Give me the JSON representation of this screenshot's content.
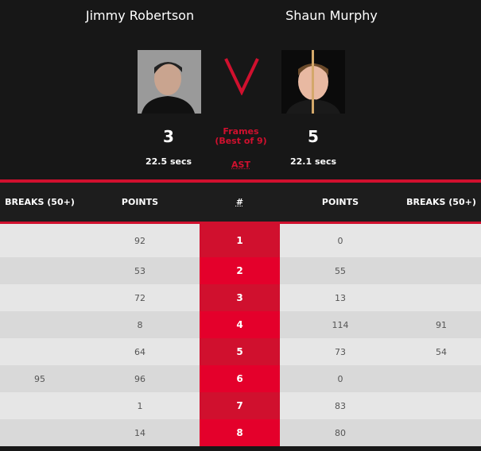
{
  "player1": {
    "name": "Jimmy Robertson",
    "score": "3",
    "avg_shot_time": "22.5 secs"
  },
  "player2": {
    "name": "Shaun Murphy",
    "score": "5",
    "avg_shot_time": "22.1 secs"
  },
  "versus": "V",
  "frames_label": "Frames",
  "best_of": "(Best of 9)",
  "ast_label": "AST",
  "headers": {
    "breaks_left": "BREAKS (50+)",
    "points_left": "POINTS",
    "frame": "#",
    "points_right": "POINTS",
    "breaks_right": "BREAKS (50+)"
  },
  "colors": {
    "accent": "#d0102e",
    "accent_alt": "#e4002b"
  },
  "frames": [
    {
      "n": "1",
      "b1": "",
      "p1": "92",
      "p2": "0",
      "b2": ""
    },
    {
      "n": "2",
      "b1": "",
      "p1": "53",
      "p2": "55",
      "b2": ""
    },
    {
      "n": "3",
      "b1": "",
      "p1": "72",
      "p2": "13",
      "b2": ""
    },
    {
      "n": "4",
      "b1": "",
      "p1": "8",
      "p2": "114",
      "b2": "91"
    },
    {
      "n": "5",
      "b1": "",
      "p1": "64",
      "p2": "73",
      "b2": "54"
    },
    {
      "n": "6",
      "b1": "95",
      "p1": "96",
      "p2": "0",
      "b2": ""
    },
    {
      "n": "7",
      "b1": "",
      "p1": "1",
      "p2": "83",
      "b2": ""
    },
    {
      "n": "8",
      "b1": "",
      "p1": "14",
      "p2": "80",
      "b2": ""
    }
  ]
}
